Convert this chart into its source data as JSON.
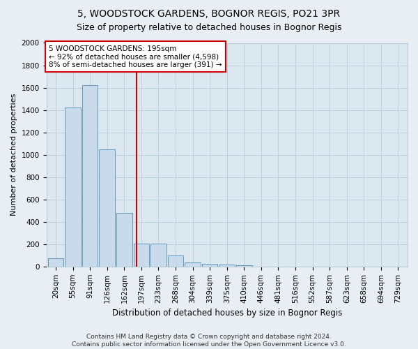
{
  "title": "5, WOODSTOCK GARDENS, BOGNOR REGIS, PO21 3PR",
  "subtitle": "Size of property relative to detached houses in Bognor Regis",
  "xlabel": "Distribution of detached houses by size in Bognor Regis",
  "ylabel": "Number of detached properties",
  "categories": [
    "20sqm",
    "55sqm",
    "91sqm",
    "126sqm",
    "162sqm",
    "197sqm",
    "233sqm",
    "268sqm",
    "304sqm",
    "339sqm",
    "375sqm",
    "410sqm",
    "446sqm",
    "481sqm",
    "516sqm",
    "552sqm",
    "587sqm",
    "623sqm",
    "658sqm",
    "694sqm",
    "729sqm"
  ],
  "values": [
    75,
    1420,
    1620,
    1050,
    480,
    205,
    205,
    100,
    35,
    25,
    20,
    10,
    0,
    0,
    0,
    0,
    0,
    0,
    0,
    0,
    0
  ],
  "bar_color": "#c9daea",
  "bar_edge_color": "#6699bb",
  "annotation_text": "5 WOODSTOCK GARDENS: 195sqm\n← 92% of detached houses are smaller (4,598)\n8% of semi-detached houses are larger (391) →",
  "annotation_box_color": "white",
  "annotation_box_edge_color": "#cc0000",
  "vline_color": "#cc0000",
  "vline_x": 4.72,
  "ylim": [
    0,
    2000
  ],
  "yticks": [
    0,
    200,
    400,
    600,
    800,
    1000,
    1200,
    1400,
    1600,
    1800,
    2000
  ],
  "bg_color": "#e8eef4",
  "plot_bg_color": "#dce8f0",
  "grid_color": "#b8ccd8",
  "footer": "Contains HM Land Registry data © Crown copyright and database right 2024.\nContains public sector information licensed under the Open Government Licence v3.0.",
  "title_fontsize": 10,
  "subtitle_fontsize": 9,
  "xlabel_fontsize": 8.5,
  "ylabel_fontsize": 8,
  "tick_fontsize": 7.5,
  "annotation_fontsize": 7.5,
  "footer_fontsize": 6.5
}
